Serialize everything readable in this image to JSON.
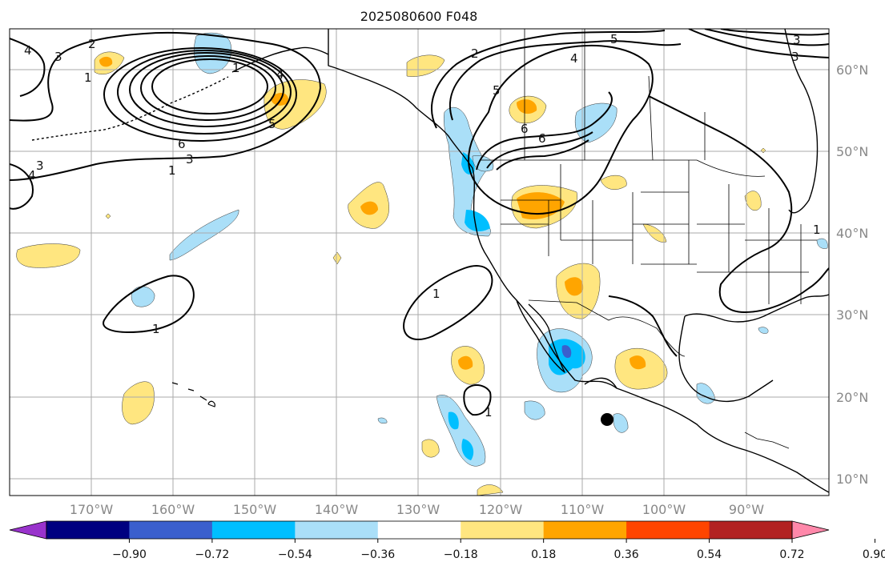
{
  "title": "2025080600 F048",
  "lat_labels": [
    "60°N",
    "50°N",
    "40°N",
    "30°N",
    "20°N",
    "10°N"
  ],
  "lon_labels": [
    "170°W",
    "160°W",
    "150°W",
    "140°W",
    "130°W",
    "120°W",
    "110°W",
    "100°W",
    "90°W"
  ],
  "colorbar": {
    "tick_labels": [
      "−0.90",
      "−0.72",
      "−0.54",
      "−0.36",
      "−0.18",
      "0.18",
      "0.36",
      "0.54",
      "0.72",
      "0.90"
    ],
    "colors": [
      "#9933cc",
      "#000080",
      "#3a5fcd",
      "#00bfff",
      "#aadff8",
      "#ffffff",
      "#ffe680",
      "#ffa500",
      "#ff4500",
      "#b22222",
      "#ff88aa"
    ]
  },
  "contour_labels": [
    "4",
    "3",
    "2",
    "1",
    "6",
    "5",
    "3",
    "4",
    "2",
    "5",
    "4",
    "3",
    "5",
    "6",
    "6",
    "3",
    "1",
    "4",
    "3",
    "1",
    "1",
    "1",
    "1",
    "1"
  ],
  "colors": {
    "negative_light": "#aadff8",
    "negative_mid": "#00bfff",
    "negative_strong": "#3a5fcd",
    "positive_light": "#ffe680",
    "positive_mid": "#ffa500",
    "contour": "#000000",
    "grid": "#aaaaaa"
  }
}
